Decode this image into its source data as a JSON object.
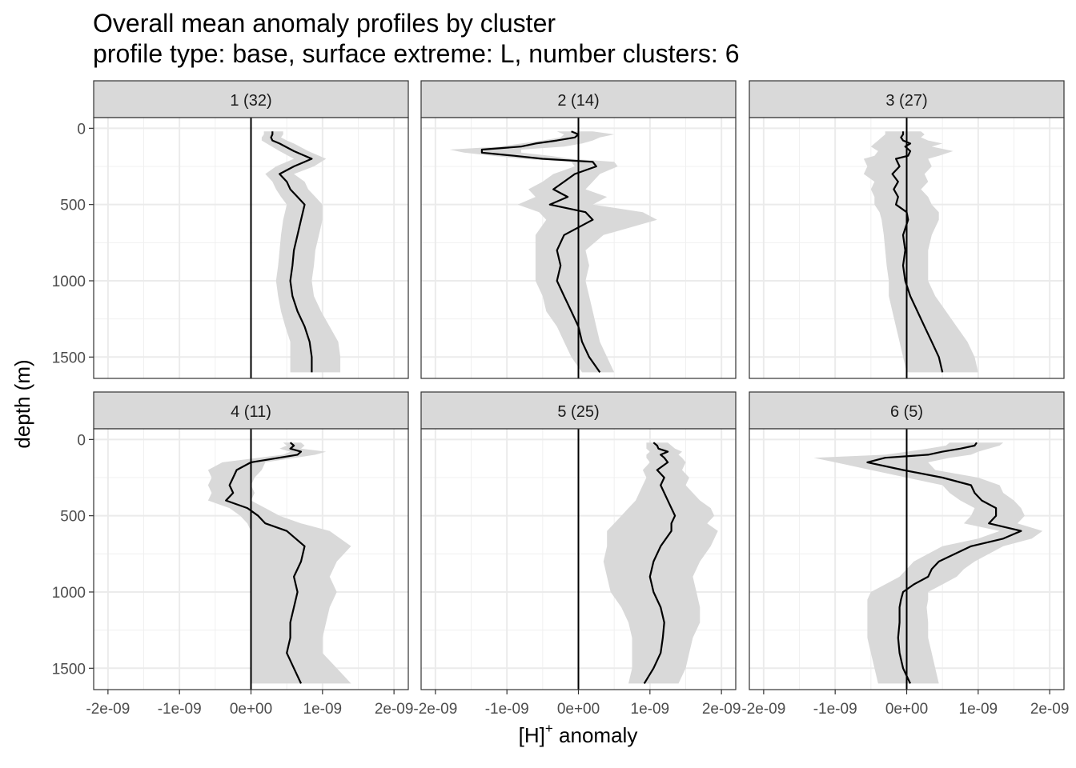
{
  "chart_data": {
    "type": "line",
    "title_line1": "Overall mean anomaly profiles by cluster",
    "title_line2": "profile type: base, surface extreme: L, number clusters: 6",
    "xlabel_main": "[H]",
    "xlabel_sup": "+",
    "xlabel_tail": " anomaly",
    "ylabel": "depth (m)",
    "xlim": [
      -2.2e-09,
      2.2e-09
    ],
    "ylim_depth": [
      1640,
      -70
    ],
    "x_ticks": [
      -2e-09,
      -1e-09,
      0,
      1e-09,
      2e-09
    ],
    "x_tick_labels": [
      "-2e-09",
      "-1e-09",
      "0e+00",
      "1e-09",
      "2e-09"
    ],
    "y_ticks": [
      0,
      500,
      1000,
      1500
    ],
    "y_tick_labels": [
      "0",
      "500",
      "1000",
      "1500"
    ],
    "reference_line_x": 0,
    "ribbon_color": "#d9d9d9",
    "line_color": "#000000",
    "panels": [
      {
        "label": "1 (32)",
        "depth": [
          20,
          40,
          60,
          80,
          100,
          150,
          200,
          250,
          300,
          350,
          400,
          450,
          500,
          600,
          700,
          800,
          900,
          1000,
          1100,
          1200,
          1300,
          1400,
          1500,
          1600
        ],
        "mean": [
          3e-10,
          3e-10,
          2.8e-10,
          3e-10,
          4e-10,
          6e-10,
          8.5e-10,
          6e-10,
          4e-10,
          5e-10,
          5.5e-10,
          6.5e-10,
          7.5e-10,
          7e-10,
          6.5e-10,
          6e-10,
          5.8e-10,
          5.5e-10,
          5.8e-10,
          6.5e-10,
          7.5e-10,
          8.2e-10,
          8.5e-10,
          8.5e-10
        ],
        "lower": [
          1.8e-10,
          1.8e-10,
          1.5e-10,
          1.5e-10,
          2.2e-10,
          4e-10,
          6e-10,
          3.5e-10,
          2e-10,
          3e-10,
          3.5e-10,
          4.2e-10,
          5e-10,
          4.5e-10,
          4.2e-10,
          4e-10,
          3.8e-10,
          3.5e-10,
          3.8e-10,
          4.2e-10,
          4.8e-10,
          5.5e-10,
          5.5e-10,
          5.5e-10
        ],
        "upper": [
          4.5e-10,
          4.5e-10,
          4.2e-10,
          5e-10,
          6e-10,
          8e-10,
          1.05e-09,
          8.8e-10,
          6e-10,
          7.5e-10,
          8e-10,
          9e-10,
          1e-09,
          1e-09,
          9.5e-10,
          9e-10,
          8.8e-10,
          8.5e-10,
          8.8e-10,
          9.8e-10,
          1.1e-09,
          1.22e-09,
          1.25e-09,
          1.25e-09
        ]
      },
      {
        "label": "2 (14)",
        "depth": [
          20,
          40,
          60,
          80,
          100,
          120,
          140,
          160,
          180,
          200,
          220,
          250,
          300,
          350,
          400,
          450,
          500,
          550,
          600,
          700,
          800,
          900,
          1000,
          1100,
          1200,
          1300,
          1400,
          1500,
          1600
        ],
        "mean": [
          -1e-10,
          0.0,
          -5e-11,
          -3e-10,
          -6e-10,
          -8e-10,
          -1.35e-09,
          -1.35e-09,
          -9e-10,
          -5e-10,
          2e-10,
          2.5e-10,
          -5e-11,
          -2e-10,
          -3.5e-10,
          -1.5e-10,
          -4e-10,
          1e-10,
          2e-10,
          -2e-10,
          -3e-10,
          -2.5e-10,
          -3e-10,
          -2e-10,
          -1e-10,
          0.0,
          5e-11,
          1.5e-10,
          3e-10
        ],
        "lower": [
          -3e-10,
          -2e-10,
          -2.5e-10,
          -5e-10,
          -8e-10,
          -1.1e-09,
          -1.8e-09,
          -1.6e-09,
          -1.2e-09,
          -8e-10,
          -1e-10,
          -5e-11,
          -3.5e-10,
          -5e-10,
          -7e-10,
          -6e-10,
          -8.5e-10,
          -5.5e-10,
          -4.5e-10,
          -6e-10,
          -6e-10,
          -6e-10,
          -6e-10,
          -5e-10,
          -4.5e-10,
          -3e-10,
          -2e-10,
          -1e-10,
          5e-11
        ],
        "upper": [
          2e-10,
          5e-10,
          3e-10,
          2e-10,
          5e-11,
          -2e-10,
          -8e-10,
          -8e-10,
          -4e-10,
          -1e-10,
          5e-10,
          5.5e-10,
          3e-10,
          2e-10,
          1e-10,
          4e-10,
          2e-10,
          9e-10,
          1.1e-09,
          3.5e-10,
          1e-10,
          1.5e-10,
          1e-10,
          1.5e-10,
          2e-10,
          2.5e-10,
          3e-10,
          4e-10,
          5e-10
        ]
      },
      {
        "label": "3 (27)",
        "depth": [
          20,
          40,
          60,
          80,
          100,
          120,
          150,
          180,
          200,
          250,
          300,
          350,
          400,
          450,
          500,
          550,
          600,
          700,
          800,
          900,
          1000,
          1100,
          1200,
          1300,
          1400,
          1500,
          1600
        ],
        "mean": [
          -5e-11,
          -5e-11,
          -8e-11,
          -5e-11,
          5e-11,
          -2e-11,
          5e-11,
          2e-11,
          -1.5e-10,
          -1e-10,
          -2e-10,
          -1.2e-10,
          -1.8e-10,
          -1.2e-10,
          -1.5e-10,
          0.0,
          2e-11,
          -5e-11,
          -2e-11,
          -5e-11,
          -2e-11,
          5e-11,
          1.5e-10,
          2.5e-10,
          3.5e-10,
          4.5e-10,
          5e-10
        ],
        "lower": [
          -3e-10,
          -3e-10,
          -3.5e-10,
          -4e-10,
          -4.5e-10,
          -5e-10,
          -4e-10,
          -4.5e-10,
          -6e-10,
          -5.5e-10,
          -6e-10,
          -4.5e-10,
          -5e-10,
          -4.5e-10,
          -4.5e-10,
          -3.8e-10,
          -3.5e-10,
          -3.2e-10,
          -3e-10,
          -2.8e-10,
          -2.5e-10,
          -2.5e-10,
          -2e-10,
          -1.5e-10,
          -1e-10,
          -5e-11,
          0.0
        ],
        "upper": [
          2e-10,
          2.5e-10,
          2e-10,
          3e-10,
          5e-10,
          3.5e-10,
          6.5e-10,
          4.5e-10,
          3e-10,
          3.5e-10,
          2.5e-10,
          3e-10,
          2e-10,
          3e-10,
          3.5e-10,
          4.5e-10,
          4.5e-10,
          3.5e-10,
          3e-10,
          3e-10,
          3e-10,
          4e-10,
          5.5e-10,
          7e-10,
          8.5e-10,
          9.5e-10,
          1e-09
        ]
      },
      {
        "label": "4 (11)",
        "depth": [
          20,
          40,
          60,
          80,
          100,
          150,
          200,
          250,
          300,
          350,
          400,
          450,
          500,
          550,
          600,
          700,
          800,
          900,
          1000,
          1100,
          1200,
          1300,
          1400,
          1500,
          1600
        ],
        "mean": [
          5.5e-10,
          6e-10,
          5.5e-10,
          7e-10,
          6.5e-10,
          0.0,
          -2e-10,
          -2.5e-10,
          -3e-10,
          -2.5e-10,
          -3.5e-10,
          -5e-11,
          1e-10,
          2e-10,
          5e-10,
          7.5e-10,
          7e-10,
          6e-10,
          6.5e-10,
          6e-10,
          5.5e-10,
          5.5e-10,
          5e-10,
          6e-10,
          7e-10
        ],
        "lower": [
          4.5e-10,
          5e-10,
          4e-10,
          5.5e-10,
          4.5e-10,
          -4e-10,
          -6e-10,
          -5.5e-10,
          -6e-10,
          -5.5e-10,
          -6e-10,
          -3e-10,
          -1.5e-10,
          -5e-11,
          0.0,
          0.0,
          0.0,
          0.0,
          0.0,
          0.0,
          0.0,
          0.0,
          0.0,
          0.0,
          0.0
        ],
        "upper": [
          7e-10,
          7.5e-10,
          7e-10,
          1.05e-09,
          9e-10,
          2e-10,
          1.5e-10,
          5e-11,
          0.0,
          5e-11,
          0.0,
          2e-10,
          4e-10,
          7e-10,
          1.1e-09,
          1.4e-09,
          1.2e-09,
          1.1e-09,
          1.2e-09,
          1.1e-09,
          1.05e-09,
          1e-09,
          1e-09,
          1.2e-09,
          1.4e-09
        ]
      },
      {
        "label": "5 (25)",
        "depth": [
          20,
          40,
          60,
          80,
          100,
          120,
          150,
          200,
          250,
          300,
          350,
          400,
          450,
          500,
          550,
          600,
          700,
          800,
          900,
          1000,
          1100,
          1200,
          1300,
          1400,
          1500,
          1600
        ],
        "mean": [
          1.05e-09,
          1.1e-09,
          1.12e-09,
          1.25e-09,
          1.15e-09,
          1.2e-09,
          1.25e-09,
          1.1e-09,
          1.2e-09,
          1.15e-09,
          1.2e-09,
          1.25e-09,
          1.3e-09,
          1.35e-09,
          1.3e-09,
          1.3e-09,
          1.15e-09,
          1.05e-09,
          1e-09,
          1.05e-09,
          1.15e-09,
          1.2e-09,
          1.18e-09,
          1.15e-09,
          1.05e-09,
          9.2e-10
        ],
        "lower": [
          9.5e-10,
          9.5e-10,
          9.5e-10,
          1e-09,
          9.5e-10,
          9.5e-10,
          1e-09,
          9e-10,
          9.5e-10,
          9e-10,
          8.5e-10,
          8e-10,
          7e-10,
          6e-10,
          5e-10,
          4e-10,
          4e-10,
          3.5e-10,
          4e-10,
          4.5e-10,
          6e-10,
          7e-10,
          7.5e-10,
          7.5e-10,
          7.5e-10,
          7e-10
        ],
        "upper": [
          1.25e-09,
          1.3e-09,
          1.35e-09,
          1.45e-09,
          1.4e-09,
          1.45e-09,
          1.5e-09,
          1.45e-09,
          1.55e-09,
          1.5e-09,
          1.6e-09,
          1.7e-09,
          1.85e-09,
          1.9e-09,
          1.8e-09,
          1.95e-09,
          1.85e-09,
          1.7e-09,
          1.6e-09,
          1.65e-09,
          1.7e-09,
          1.7e-09,
          1.6e-09,
          1.55e-09,
          1.5e-09,
          1.4e-09
        ]
      },
      {
        "label": "6 (5)",
        "depth": [
          20,
          40,
          60,
          80,
          100,
          120,
          150,
          200,
          250,
          300,
          350,
          400,
          450,
          500,
          550,
          600,
          650,
          700,
          800,
          850,
          900,
          950,
          1000,
          1050,
          1100,
          1200,
          1300,
          1400,
          1500,
          1600
        ],
        "mean": [
          9.8e-10,
          9.5e-10,
          7.5e-10,
          5e-10,
          3e-10,
          -3e-10,
          -5.5e-10,
          -5e-11,
          5e-10,
          9e-10,
          9.5e-10,
          1.05e-09,
          1.25e-09,
          1.25e-09,
          1.15e-09,
          1.6e-09,
          1.35e-09,
          9e-10,
          4.5e-10,
          3.5e-10,
          3e-10,
          1e-10,
          -5e-11,
          -8e-11,
          -1e-10,
          -1e-10,
          -1.2e-10,
          -1e-10,
          -5e-11,
          5e-11
        ],
        "lower": [
          6e-10,
          5.5e-10,
          3e-10,
          0.0,
          -3e-10,
          -1.3e-09,
          -1e-09,
          -5e-10,
          0.0,
          5e-10,
          6e-10,
          7.5e-10,
          9.5e-10,
          9e-10,
          8e-10,
          1.3e-09,
          1e-09,
          5e-10,
          1e-10,
          0.0,
          -1e-10,
          -3e-10,
          -5e-10,
          -5.5e-10,
          -5.5e-10,
          -5.5e-10,
          -5.5e-10,
          -5e-10,
          -4.5e-10,
          -4e-10
        ],
        "upper": [
          1.35e-09,
          1.3e-09,
          1.15e-09,
          1e-09,
          9e-10,
          6e-10,
          3e-10,
          4e-10,
          1e-09,
          1.3e-09,
          1.35e-09,
          1.5e-09,
          1.6e-09,
          1.65e-09,
          1.55e-09,
          1.9e-09,
          1.75e-09,
          1.35e-09,
          9.5e-10,
          8e-10,
          7e-10,
          5e-10,
          3e-10,
          3e-10,
          2.8e-10,
          3e-10,
          3e-10,
          3.5e-10,
          4e-10,
          4.5e-10
        ]
      }
    ]
  }
}
